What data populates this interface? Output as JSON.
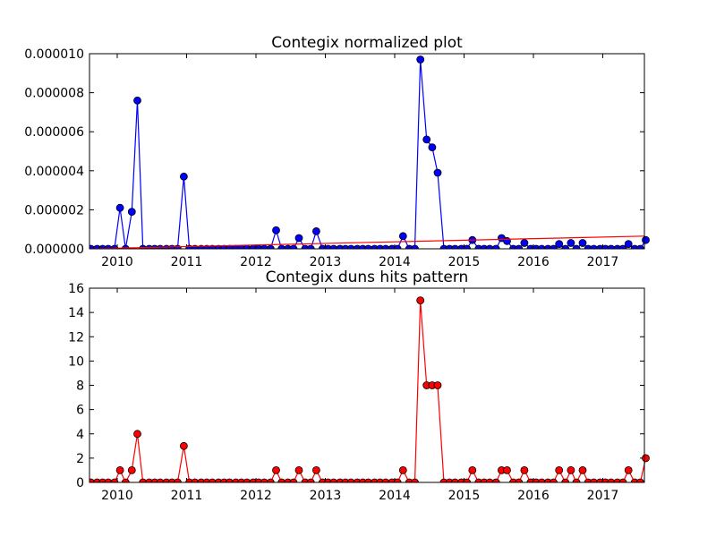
{
  "chart_data": [
    {
      "type": "line",
      "title": "Contegix normalized plot",
      "xlabel": "",
      "ylabel": "",
      "xlim": [
        2009.6,
        2017.6
      ],
      "ylim": [
        0,
        1e-05
      ],
      "xticks": [
        2010,
        2011,
        2012,
        2013,
        2014,
        2015,
        2016,
        2017
      ],
      "xtick_labels": [
        "2010",
        "2011",
        "2012",
        "2013",
        "2014",
        "2015",
        "2016",
        "2017"
      ],
      "yticks": [
        0,
        2e-06,
        4e-06,
        6e-06,
        8e-06,
        1e-05
      ],
      "ytick_labels": [
        "0.000000",
        "0.000002",
        "0.000004",
        "0.000006",
        "0.000008",
        "0.000010"
      ],
      "grid": false,
      "series": [
        {
          "color": "#0000ff",
          "marker": "circle",
          "points": [
            [
              2009.62,
              0
            ],
            [
              2009.71,
              0
            ],
            [
              2009.79,
              0
            ],
            [
              2009.87,
              0
            ],
            [
              2009.96,
              0
            ],
            [
              2010.04,
              2.1e-06
            ],
            [
              2010.12,
              0
            ],
            [
              2010.21,
              1.9e-06
            ],
            [
              2010.29,
              7.6e-06
            ],
            [
              2010.37,
              0
            ],
            [
              2010.46,
              0
            ],
            [
              2010.54,
              0
            ],
            [
              2010.62,
              0
            ],
            [
              2010.71,
              0
            ],
            [
              2010.79,
              0
            ],
            [
              2010.87,
              0
            ],
            [
              2010.96,
              3.7e-06
            ],
            [
              2011.04,
              0
            ],
            [
              2011.12,
              0
            ],
            [
              2011.21,
              0
            ],
            [
              2011.29,
              0
            ],
            [
              2011.37,
              0
            ],
            [
              2011.46,
              0
            ],
            [
              2011.54,
              0
            ],
            [
              2011.62,
              0
            ],
            [
              2011.71,
              0
            ],
            [
              2011.79,
              0
            ],
            [
              2011.87,
              0
            ],
            [
              2011.96,
              0
            ],
            [
              2012.04,
              0
            ],
            [
              2012.12,
              0
            ],
            [
              2012.21,
              0
            ],
            [
              2012.29,
              9.5e-07
            ],
            [
              2012.37,
              0
            ],
            [
              2012.46,
              0
            ],
            [
              2012.54,
              0
            ],
            [
              2012.62,
              5.5e-07
            ],
            [
              2012.71,
              0
            ],
            [
              2012.79,
              0
            ],
            [
              2012.87,
              9e-07
            ],
            [
              2012.96,
              0
            ],
            [
              2013.04,
              0
            ],
            [
              2013.12,
              0
            ],
            [
              2013.21,
              0
            ],
            [
              2013.29,
              0
            ],
            [
              2013.37,
              0
            ],
            [
              2013.46,
              0
            ],
            [
              2013.54,
              0
            ],
            [
              2013.62,
              0
            ],
            [
              2013.71,
              0
            ],
            [
              2013.79,
              0
            ],
            [
              2013.87,
              0
            ],
            [
              2013.96,
              0
            ],
            [
              2014.04,
              0
            ],
            [
              2014.12,
              6.5e-07
            ],
            [
              2014.21,
              0
            ],
            [
              2014.29,
              0
            ],
            [
              2014.37,
              9.7e-06
            ],
            [
              2014.46,
              5.6e-06
            ],
            [
              2014.54,
              5.2e-06
            ],
            [
              2014.62,
              3.9e-06
            ],
            [
              2014.71,
              0
            ],
            [
              2014.79,
              0
            ],
            [
              2014.87,
              0
            ],
            [
              2014.96,
              0
            ],
            [
              2015.04,
              0
            ],
            [
              2015.12,
              4.5e-07
            ],
            [
              2015.21,
              0
            ],
            [
              2015.29,
              0
            ],
            [
              2015.37,
              0
            ],
            [
              2015.46,
              0
            ],
            [
              2015.54,
              5.5e-07
            ],
            [
              2015.62,
              4e-07
            ],
            [
              2015.71,
              0
            ],
            [
              2015.79,
              0
            ],
            [
              2015.87,
              3e-07
            ],
            [
              2015.96,
              0
            ],
            [
              2016.04,
              0
            ],
            [
              2016.12,
              0
            ],
            [
              2016.21,
              0
            ],
            [
              2016.29,
              0
            ],
            [
              2016.37,
              2.5e-07
            ],
            [
              2016.46,
              0
            ],
            [
              2016.54,
              3e-07
            ],
            [
              2016.62,
              0
            ],
            [
              2016.71,
              3e-07
            ],
            [
              2016.79,
              0
            ],
            [
              2016.87,
              0
            ],
            [
              2016.96,
              0
            ],
            [
              2017.04,
              0
            ],
            [
              2017.12,
              0
            ],
            [
              2017.21,
              0
            ],
            [
              2017.29,
              0
            ],
            [
              2017.37,
              2.5e-07
            ],
            [
              2017.46,
              0
            ],
            [
              2017.54,
              0
            ],
            [
              2017.62,
              4.5e-07
            ]
          ]
        },
        {
          "color": "#ff0000",
          "marker": "none",
          "points": [
            [
              2009.6,
              0
            ],
            [
              2017.6,
              6.5e-07
            ]
          ]
        }
      ]
    },
    {
      "type": "line",
      "title": "Contegix duns hits pattern",
      "xlabel": "",
      "ylabel": "",
      "xlim": [
        2009.6,
        2017.6
      ],
      "ylim": [
        0,
        16
      ],
      "xticks": [
        2010,
        2011,
        2012,
        2013,
        2014,
        2015,
        2016,
        2017
      ],
      "xtick_labels": [
        "2010",
        "2011",
        "2012",
        "2013",
        "2014",
        "2015",
        "2016",
        "2017"
      ],
      "yticks": [
        0,
        2,
        4,
        6,
        8,
        10,
        12,
        14,
        16
      ],
      "ytick_labels": [
        "0",
        "2",
        "4",
        "6",
        "8",
        "10",
        "12",
        "14",
        "16"
      ],
      "grid": false,
      "series": [
        {
          "color": "#ff0000",
          "marker": "circle",
          "points": [
            [
              2009.62,
              0
            ],
            [
              2009.71,
              0
            ],
            [
              2009.79,
              0
            ],
            [
              2009.87,
              0
            ],
            [
              2009.96,
              0
            ],
            [
              2010.04,
              1
            ],
            [
              2010.12,
              0
            ],
            [
              2010.21,
              1
            ],
            [
              2010.29,
              4
            ],
            [
              2010.37,
              0
            ],
            [
              2010.46,
              0
            ],
            [
              2010.54,
              0
            ],
            [
              2010.62,
              0
            ],
            [
              2010.71,
              0
            ],
            [
              2010.79,
              0
            ],
            [
              2010.87,
              0
            ],
            [
              2010.96,
              3
            ],
            [
              2011.04,
              0
            ],
            [
              2011.12,
              0
            ],
            [
              2011.21,
              0
            ],
            [
              2011.29,
              0
            ],
            [
              2011.37,
              0
            ],
            [
              2011.46,
              0
            ],
            [
              2011.54,
              0
            ],
            [
              2011.62,
              0
            ],
            [
              2011.71,
              0
            ],
            [
              2011.79,
              0
            ],
            [
              2011.87,
              0
            ],
            [
              2011.96,
              0
            ],
            [
              2012.04,
              0
            ],
            [
              2012.12,
              0
            ],
            [
              2012.21,
              0
            ],
            [
              2012.29,
              1
            ],
            [
              2012.37,
              0
            ],
            [
              2012.46,
              0
            ],
            [
              2012.54,
              0
            ],
            [
              2012.62,
              1
            ],
            [
              2012.71,
              0
            ],
            [
              2012.79,
              0
            ],
            [
              2012.87,
              1
            ],
            [
              2012.96,
              0
            ],
            [
              2013.04,
              0
            ],
            [
              2013.12,
              0
            ],
            [
              2013.21,
              0
            ],
            [
              2013.29,
              0
            ],
            [
              2013.37,
              0
            ],
            [
              2013.46,
              0
            ],
            [
              2013.54,
              0
            ],
            [
              2013.62,
              0
            ],
            [
              2013.71,
              0
            ],
            [
              2013.79,
              0
            ],
            [
              2013.87,
              0
            ],
            [
              2013.96,
              0
            ],
            [
              2014.04,
              0
            ],
            [
              2014.12,
              1
            ],
            [
              2014.21,
              0
            ],
            [
              2014.29,
              0
            ],
            [
              2014.37,
              15
            ],
            [
              2014.46,
              8
            ],
            [
              2014.54,
              8
            ],
            [
              2014.62,
              8
            ],
            [
              2014.71,
              0
            ],
            [
              2014.79,
              0
            ],
            [
              2014.87,
              0
            ],
            [
              2014.96,
              0
            ],
            [
              2015.04,
              0
            ],
            [
              2015.12,
              1
            ],
            [
              2015.21,
              0
            ],
            [
              2015.29,
              0
            ],
            [
              2015.37,
              0
            ],
            [
              2015.46,
              0
            ],
            [
              2015.54,
              1
            ],
            [
              2015.62,
              1
            ],
            [
              2015.71,
              0
            ],
            [
              2015.79,
              0
            ],
            [
              2015.87,
              1
            ],
            [
              2015.96,
              0
            ],
            [
              2016.04,
              0
            ],
            [
              2016.12,
              0
            ],
            [
              2016.21,
              0
            ],
            [
              2016.29,
              0
            ],
            [
              2016.37,
              1
            ],
            [
              2016.46,
              0
            ],
            [
              2016.54,
              1
            ],
            [
              2016.62,
              0
            ],
            [
              2016.71,
              1
            ],
            [
              2016.79,
              0
            ],
            [
              2016.87,
              0
            ],
            [
              2016.96,
              0
            ],
            [
              2017.04,
              0
            ],
            [
              2017.12,
              0
            ],
            [
              2017.21,
              0
            ],
            [
              2017.29,
              0
            ],
            [
              2017.37,
              1
            ],
            [
              2017.46,
              0
            ],
            [
              2017.54,
              0
            ],
            [
              2017.62,
              2
            ]
          ]
        }
      ]
    }
  ]
}
